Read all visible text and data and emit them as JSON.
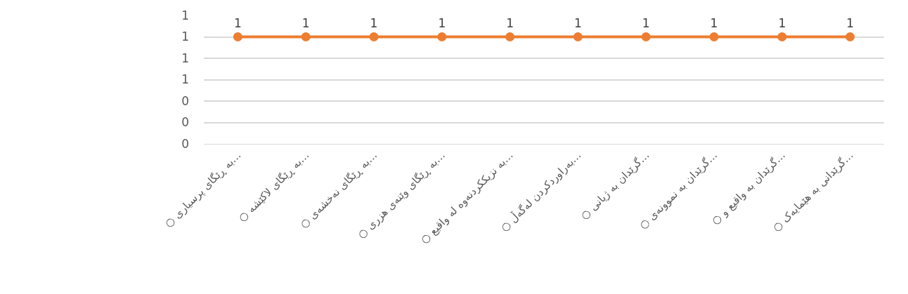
{
  "chart_data": {
    "type": "line",
    "categories": [
      "○ به ڕێگای پرسیاری…",
      "○ به ڕێگای لاکێشه…",
      "○ به ڕێگای نەخشەی…",
      "○ به ڕێگای وێنەی هزری…",
      "○ به نزیککردنەوە له واقیع…",
      "○ بەراوردکردن لەگەڵ…",
      "○ گرێدان به ژیانی…",
      "○ گرێدان به نموونەی…",
      "○ گرێدان به واقیع و…",
      "○ گرێدانی به هێمایەک…"
    ],
    "series": [
      {
        "color": "#ed7d31",
        "values": [
          1,
          1,
          1,
          1,
          1,
          1,
          1,
          1,
          1,
          1
        ]
      }
    ],
    "ylim": [
      0,
      1.2
    ],
    "yticks": [
      {
        "value": 0,
        "label": "0"
      },
      {
        "value": 0.2,
        "label": "0"
      },
      {
        "value": 0.4,
        "label": "0"
      },
      {
        "value": 0.6,
        "label": "1"
      },
      {
        "value": 0.8,
        "label": "1"
      },
      {
        "value": 1,
        "label": "1"
      },
      {
        "value": 1.2,
        "label": "1"
      }
    ],
    "grid": "y",
    "marker": "circle",
    "line_style": "solid",
    "data_labels": true,
    "legend": false
  }
}
